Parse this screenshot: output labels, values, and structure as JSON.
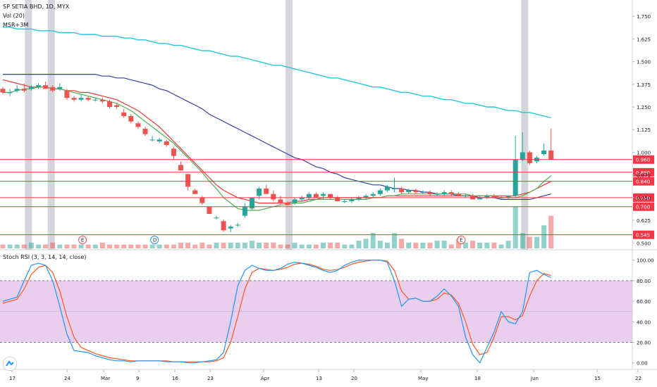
{
  "header": {
    "title": "SP SETIA BHD, 1D, MYX",
    "indicator_vol": "Vol (20)",
    "indicator_msr": "MSR+3M",
    "rsi_label": "Stoch RSI (3, 3, 14, 14, close)"
  },
  "colors": {
    "up": "#26a69a",
    "down": "#ef5350",
    "level": "#f23645",
    "ma_fast": "#4caf50",
    "ma_mid": "#e53935",
    "ma_slow": "#303f9f",
    "ma_long": "#26c6da",
    "k_line": "#2196f3",
    "d_line": "#ff5722",
    "rsi_band": "#e1bee7",
    "event_bar": "#b2b5be"
  },
  "icons": {
    "logo": "tradingview-logo-icon"
  },
  "chart_data": [
    {
      "type": "candlestick",
      "title": "SP SETIA BHD, 1D, MYX",
      "ylim": [
        0.47,
        1.84
      ],
      "y_ticks": [
        "1.750",
        "1.625",
        "1.500",
        "1.375",
        "1.250",
        "1.125",
        "1.000",
        "0.875",
        "0.750",
        "0.625",
        "0.500"
      ],
      "x_ticks": [
        "17",
        "24",
        "Mar",
        "9",
        "16",
        "23",
        "Apr",
        "13",
        "20",
        "May",
        "18",
        "Jun",
        "15",
        "22"
      ],
      "levels": [
        {
          "label": "0.960",
          "value": 0.96
        },
        {
          "label": "0.890",
          "value": 0.89
        },
        {
          "label": "0.840",
          "value": 0.84
        },
        {
          "label": "0.750",
          "value": 0.75
        },
        {
          "label": "0.700",
          "value": 0.7
        },
        {
          "label": "0.545",
          "value": 0.545
        }
      ],
      "events": [
        {
          "label": "E",
          "value": 0.5
        },
        {
          "label": "D",
          "value": 0.5
        },
        {
          "label": "E",
          "value": 0.5
        }
      ],
      "candles": [
        [
          1.35,
          1.36,
          1.32,
          1.33
        ],
        [
          1.33,
          1.35,
          1.31,
          1.33
        ],
        [
          1.34,
          1.37,
          1.33,
          1.35
        ],
        [
          1.35,
          1.38,
          1.33,
          1.34
        ],
        [
          1.35,
          1.37,
          1.34,
          1.36
        ],
        [
          1.36,
          1.38,
          1.35,
          1.37
        ],
        [
          1.37,
          1.39,
          1.35,
          1.35
        ],
        [
          1.36,
          1.37,
          1.33,
          1.34
        ],
        [
          1.35,
          1.38,
          1.34,
          1.36
        ],
        [
          1.34,
          1.35,
          1.29,
          1.3
        ],
        [
          1.3,
          1.31,
          1.28,
          1.29
        ],
        [
          1.29,
          1.32,
          1.28,
          1.3
        ],
        [
          1.3,
          1.31,
          1.28,
          1.29
        ],
        [
          1.29,
          1.3,
          1.28,
          1.29
        ],
        [
          1.29,
          1.3,
          1.27,
          1.28
        ],
        [
          1.28,
          1.29,
          1.24,
          1.25
        ],
        [
          1.26,
          1.27,
          1.24,
          1.25
        ],
        [
          1.22,
          1.24,
          1.19,
          1.2
        ],
        [
          1.2,
          1.21,
          1.16,
          1.17
        ],
        [
          1.16,
          1.17,
          1.13,
          1.14
        ],
        [
          1.13,
          1.14,
          1.09,
          1.1
        ],
        [
          1.07,
          1.09,
          1.06,
          1.07
        ],
        [
          1.06,
          1.08,
          1.05,
          1.07
        ],
        [
          1.06,
          1.07,
          1.03,
          1.04
        ],
        [
          1.02,
          1.03,
          0.96,
          0.98
        ],
        [
          0.93,
          0.95,
          0.9,
          0.9
        ],
        [
          0.88,
          0.88,
          0.79,
          0.81
        ],
        [
          0.79,
          0.8,
          0.77,
          0.77
        ],
        [
          0.75,
          0.76,
          0.71,
          0.72
        ],
        [
          0.7,
          0.7,
          0.66,
          0.66
        ],
        [
          0.64,
          0.65,
          0.63,
          0.64
        ],
        [
          0.62,
          0.63,
          0.56,
          0.57
        ],
        [
          0.58,
          0.6,
          0.56,
          0.59
        ],
        [
          0.6,
          0.61,
          0.59,
          0.6
        ],
        [
          0.65,
          0.72,
          0.64,
          0.7
        ],
        [
          0.69,
          0.75,
          0.68,
          0.75
        ],
        [
          0.76,
          0.81,
          0.74,
          0.8
        ],
        [
          0.8,
          0.82,
          0.77,
          0.77
        ],
        [
          0.77,
          0.79,
          0.73,
          0.74
        ],
        [
          0.74,
          0.76,
          0.71,
          0.72
        ],
        [
          0.72,
          0.73,
          0.71,
          0.71
        ],
        [
          0.72,
          0.75,
          0.71,
          0.74
        ],
        [
          0.74,
          0.76,
          0.73,
          0.75
        ],
        [
          0.75,
          0.78,
          0.74,
          0.77
        ],
        [
          0.77,
          0.78,
          0.75,
          0.75
        ],
        [
          0.76,
          0.78,
          0.74,
          0.77
        ],
        [
          0.77,
          0.77,
          0.74,
          0.75
        ],
        [
          0.75,
          0.76,
          0.73,
          0.73
        ],
        [
          0.73,
          0.74,
          0.72,
          0.73
        ],
        [
          0.73,
          0.75,
          0.72,
          0.74
        ],
        [
          0.74,
          0.76,
          0.73,
          0.75
        ],
        [
          0.75,
          0.77,
          0.74,
          0.76
        ],
        [
          0.76,
          0.78,
          0.75,
          0.77
        ],
        [
          0.77,
          0.8,
          0.76,
          0.79
        ],
        [
          0.79,
          0.82,
          0.78,
          0.81
        ],
        [
          0.8,
          0.86,
          0.78,
          0.8
        ],
        [
          0.8,
          0.81,
          0.77,
          0.78
        ],
        [
          0.78,
          0.8,
          0.77,
          0.79
        ],
        [
          0.79,
          0.8,
          0.77,
          0.78
        ],
        [
          0.78,
          0.79,
          0.77,
          0.78
        ],
        [
          0.78,
          0.79,
          0.76,
          0.77
        ],
        [
          0.77,
          0.78,
          0.76,
          0.77
        ],
        [
          0.77,
          0.79,
          0.76,
          0.78
        ],
        [
          0.78,
          0.79,
          0.76,
          0.77
        ],
        [
          0.77,
          0.78,
          0.76,
          0.76
        ],
        [
          0.76,
          0.77,
          0.75,
          0.76
        ],
        [
          0.76,
          0.77,
          0.74,
          0.74
        ],
        [
          0.74,
          0.76,
          0.74,
          0.75
        ],
        [
          0.75,
          0.77,
          0.74,
          0.76
        ],
        [
          0.76,
          0.77,
          0.75,
          0.75
        ],
        [
          0.75,
          0.76,
          0.74,
          0.75
        ],
        [
          0.75,
          0.76,
          0.74,
          0.76
        ],
        [
          0.76,
          1.09,
          0.75,
          0.96
        ],
        [
          0.96,
          1.11,
          0.95,
          1.0
        ],
        [
          1.0,
          1.01,
          0.93,
          0.94
        ],
        [
          0.95,
          0.98,
          0.94,
          0.97
        ],
        [
          0.99,
          1.05,
          0.98,
          1.01
        ],
        [
          1.01,
          1.13,
          0.96,
          0.96
        ]
      ],
      "volumes": [
        2,
        2,
        2,
        2,
        3,
        2,
        2,
        3,
        2,
        2,
        2,
        2,
        2,
        2,
        3,
        2,
        2,
        2,
        2,
        2,
        2,
        2,
        2,
        2,
        2,
        3,
        3,
        2,
        3,
        2,
        3,
        3,
        3,
        3,
        3,
        4,
        3,
        3,
        3,
        2,
        2,
        3,
        2,
        2,
        2,
        3,
        3,
        3,
        2,
        2,
        4,
        5,
        8,
        4,
        3,
        8,
        5,
        3,
        3,
        3,
        3,
        4,
        4,
        2,
        5,
        3,
        4,
        3,
        3,
        3,
        2,
        4,
        22,
        8,
        6,
        6,
        12,
        17
      ],
      "ma_fast": [
        1.33,
        1.33,
        1.34,
        1.35,
        1.35,
        1.36,
        1.36,
        1.35,
        1.35,
        1.34,
        1.33,
        1.32,
        1.31,
        1.3,
        1.29,
        1.28,
        1.27,
        1.25,
        1.23,
        1.2,
        1.17,
        1.14,
        1.11,
        1.08,
        1.05,
        1.01,
        0.97,
        0.93,
        0.89,
        0.84,
        0.8,
        0.75,
        0.72,
        0.69,
        0.68,
        0.68,
        0.68,
        0.69,
        0.7,
        0.71,
        0.71,
        0.72,
        0.72,
        0.73,
        0.74,
        0.74,
        0.74,
        0.74,
        0.74,
        0.74,
        0.74,
        0.74,
        0.75,
        0.75,
        0.76,
        0.76,
        0.77,
        0.77,
        0.77,
        0.77,
        0.77,
        0.77,
        0.77,
        0.77,
        0.77,
        0.77,
        0.76,
        0.76,
        0.76,
        0.76,
        0.75,
        0.75,
        0.75,
        0.76,
        0.78,
        0.8,
        0.84,
        0.87
      ],
      "ma_mid": [
        1.4,
        1.39,
        1.38,
        1.37,
        1.36,
        1.36,
        1.36,
        1.35,
        1.35,
        1.34,
        1.34,
        1.33,
        1.33,
        1.32,
        1.31,
        1.3,
        1.29,
        1.27,
        1.25,
        1.23,
        1.2,
        1.17,
        1.14,
        1.1,
        1.06,
        1.02,
        0.98,
        0.94,
        0.9,
        0.86,
        0.82,
        0.79,
        0.77,
        0.75,
        0.74,
        0.73,
        0.72,
        0.72,
        0.72,
        0.72,
        0.72,
        0.73,
        0.73,
        0.74,
        0.74,
        0.75,
        0.75,
        0.75,
        0.75,
        0.75,
        0.75,
        0.75,
        0.75,
        0.75,
        0.76,
        0.76,
        0.76,
        0.76,
        0.76,
        0.76,
        0.76,
        0.76,
        0.76,
        0.76,
        0.76,
        0.76,
        0.76,
        0.76,
        0.76,
        0.76,
        0.76,
        0.76,
        0.76,
        0.77,
        0.78,
        0.8,
        0.82,
        0.84
      ],
      "ma_slow": [
        1.43,
        1.43,
        1.43,
        1.43,
        1.43,
        1.43,
        1.43,
        1.43,
        1.43,
        1.43,
        1.43,
        1.43,
        1.43,
        1.43,
        1.42,
        1.42,
        1.41,
        1.41,
        1.4,
        1.39,
        1.38,
        1.37,
        1.35,
        1.34,
        1.32,
        1.3,
        1.28,
        1.26,
        1.24,
        1.21,
        1.19,
        1.17,
        1.15,
        1.13,
        1.11,
        1.09,
        1.07,
        1.05,
        1.03,
        1.01,
        0.99,
        0.97,
        0.96,
        0.94,
        0.92,
        0.91,
        0.89,
        0.88,
        0.86,
        0.85,
        0.84,
        0.83,
        0.82,
        0.82,
        0.81,
        0.8,
        0.8,
        0.79,
        0.79,
        0.78,
        0.78,
        0.77,
        0.77,
        0.77,
        0.76,
        0.76,
        0.76,
        0.75,
        0.75,
        0.75,
        0.74,
        0.74,
        0.74,
        0.74,
        0.74,
        0.75,
        0.76,
        0.77
      ],
      "ma_long": [
        1.69,
        1.69,
        1.68,
        1.68,
        1.68,
        1.67,
        1.67,
        1.67,
        1.66,
        1.66,
        1.66,
        1.65,
        1.65,
        1.65,
        1.64,
        1.64,
        1.64,
        1.63,
        1.63,
        1.62,
        1.62,
        1.61,
        1.6,
        1.6,
        1.59,
        1.59,
        1.58,
        1.57,
        1.56,
        1.56,
        1.55,
        1.54,
        1.53,
        1.53,
        1.52,
        1.51,
        1.5,
        1.49,
        1.48,
        1.48,
        1.47,
        1.46,
        1.45,
        1.44,
        1.43,
        1.42,
        1.41,
        1.41,
        1.4,
        1.39,
        1.38,
        1.37,
        1.36,
        1.36,
        1.35,
        1.34,
        1.33,
        1.33,
        1.32,
        1.31,
        1.31,
        1.3,
        1.29,
        1.29,
        1.28,
        1.27,
        1.27,
        1.26,
        1.25,
        1.25,
        1.24,
        1.23,
        1.23,
        1.22,
        1.22,
        1.21,
        1.2,
        1.19
      ]
    },
    {
      "type": "line",
      "title": "Stoch RSI (3, 3, 14, 14, close)",
      "ylim": [
        -5,
        108
      ],
      "y_ticks": [
        "100.00",
        "80.00",
        "60.00",
        "40.00",
        "20.00",
        "0.00"
      ],
      "band": [
        20,
        80
      ],
      "series": [
        {
          "name": "K",
          "values": [
            60,
            62,
            64,
            80,
            95,
            97,
            95,
            80,
            55,
            28,
            12,
            11,
            10,
            7,
            5,
            3,
            2,
            2,
            1,
            2,
            2,
            2,
            2,
            1,
            1,
            1,
            0,
            0,
            1,
            2,
            3,
            10,
            40,
            75,
            90,
            95,
            92,
            90,
            90,
            92,
            96,
            98,
            97,
            95,
            93,
            90,
            88,
            90,
            95,
            98,
            100,
            100,
            100,
            100,
            98,
            80,
            55,
            62,
            63,
            60,
            60,
            65,
            72,
            65,
            55,
            25,
            8,
            0,
            15,
            30,
            50,
            40,
            38,
            50,
            88,
            90,
            86,
            83
          ]
        },
        {
          "name": "D",
          "values": [
            58,
            60,
            62,
            72,
            86,
            93,
            95,
            88,
            70,
            45,
            25,
            15,
            12,
            9,
            7,
            5,
            4,
            3,
            2,
            2,
            2,
            2,
            2,
            2,
            1,
            1,
            1,
            1,
            1,
            1,
            2,
            5,
            20,
            45,
            72,
            88,
            92,
            91,
            90,
            91,
            93,
            96,
            97,
            96,
            94,
            91,
            90,
            91,
            93,
            96,
            98,
            99,
            100,
            100,
            99,
            90,
            70,
            62,
            63,
            60,
            60,
            62,
            68,
            66,
            58,
            40,
            18,
            8,
            10,
            25,
            45,
            45,
            42,
            46,
            65,
            80,
            87,
            85
          ]
        }
      ]
    }
  ]
}
